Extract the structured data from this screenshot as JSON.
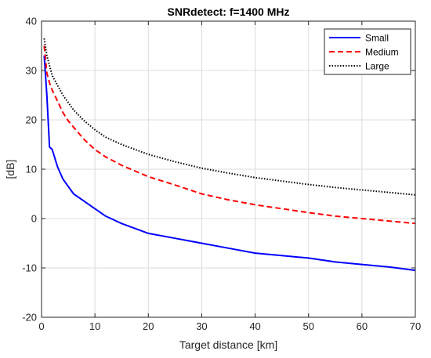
{
  "chart_data": {
    "type": "line",
    "title": "SNRdetect: f=1400 MHz",
    "xlabel": "Target distance [km]",
    "ylabel": "[dB]",
    "xlim": [
      0,
      70
    ],
    "ylim": [
      -20,
      40
    ],
    "xticks": [
      0,
      10,
      20,
      30,
      40,
      50,
      60,
      70
    ],
    "yticks": [
      -20,
      -10,
      0,
      10,
      20,
      30,
      40
    ],
    "xtick_labels": [
      "0",
      "10",
      "20",
      "30",
      "40",
      "50",
      "60",
      "70"
    ],
    "ytick_labels": [
      "-20",
      "-10",
      "0",
      "10",
      "20",
      "30",
      "40"
    ],
    "grid": true,
    "legend_position": "top-right",
    "series": [
      {
        "name": "Small",
        "color": "#0000ff",
        "style": "solid",
        "x": [
          0.5,
          1,
          1.5,
          2,
          3,
          4,
          5,
          6,
          8,
          10,
          12,
          15,
          20,
          25,
          30,
          35,
          40,
          45,
          50,
          55,
          60,
          65,
          70
        ],
        "y": [
          33,
          25,
          14.5,
          14.0,
          10.5,
          8.0,
          6.5,
          5.0,
          3.5,
          2.0,
          0.5,
          -1.0,
          -3.0,
          -4.0,
          -5.0,
          -6.0,
          -7.0,
          -7.5,
          -8.0,
          -8.8,
          -9.3,
          -9.8,
          -10.5
        ]
      },
      {
        "name": "Medium",
        "color": "#ff0000",
        "style": "dashed",
        "x": [
          0.5,
          1,
          1.5,
          2,
          3,
          4,
          5,
          6,
          8,
          10,
          12,
          15,
          20,
          25,
          30,
          35,
          40,
          45,
          50,
          55,
          60,
          65,
          70
        ],
        "y": [
          35,
          29.5,
          27.5,
          26.0,
          23.8,
          21.5,
          19.8,
          18.5,
          16.0,
          14.0,
          12.5,
          10.8,
          8.5,
          6.8,
          5.0,
          3.8,
          2.8,
          2.0,
          1.2,
          0.5,
          0,
          -0.5,
          -1.0
        ]
      },
      {
        "name": "Large",
        "color": "#000000",
        "style": "dotted",
        "x": [
          0.5,
          1,
          1.5,
          2,
          3,
          4,
          5,
          6,
          8,
          10,
          12,
          15,
          20,
          25,
          30,
          35,
          40,
          45,
          50,
          55,
          60,
          65,
          70
        ],
        "y": [
          36.5,
          33.0,
          31.0,
          29.0,
          27.0,
          25.0,
          23.5,
          22.0,
          19.8,
          18.0,
          16.5,
          15.0,
          13.0,
          11.5,
          10.2,
          9.2,
          8.3,
          7.6,
          6.9,
          6.3,
          5.8,
          5.3,
          4.8
        ]
      }
    ]
  }
}
